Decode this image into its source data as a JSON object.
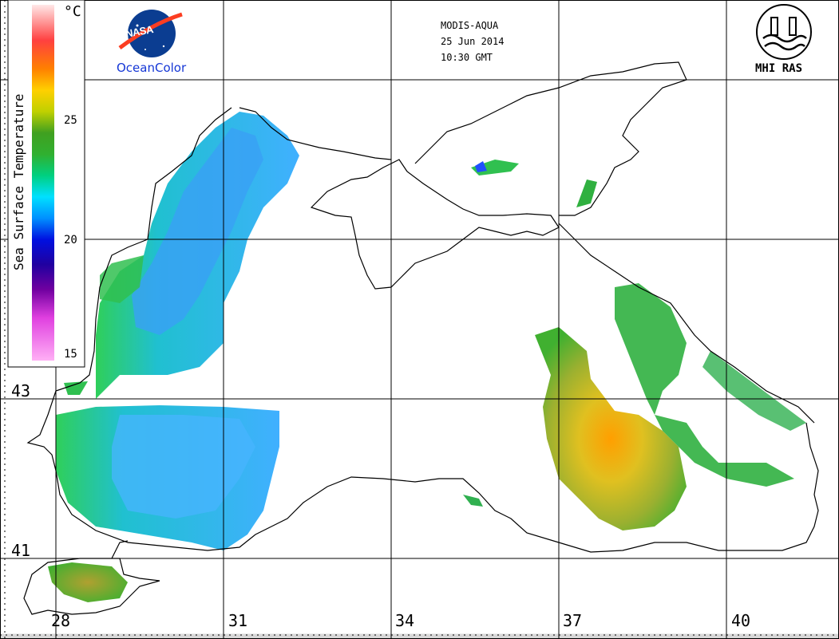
{
  "header": {
    "satellite": "MODIS-AQUA",
    "date": "25 Jun 2014",
    "time": "10:30 GMT"
  },
  "logos": {
    "nasa": "NASA",
    "oceancolor": "OceanColor",
    "mhi": "MHI RAS"
  },
  "legend": {
    "title": "Sea Surface Temperature",
    "unit": "°C",
    "ticks": [
      "25",
      "20",
      "15"
    ],
    "range": [
      15,
      30
    ],
    "colors": [
      "#ff80f0",
      "#a000c0",
      "#3000a0",
      "#0010f0",
      "#00a0ff",
      "#00e0e0",
      "#20c040",
      "#40a020",
      "#c0d000",
      "#ffd000",
      "#ff8000",
      "#ff3030",
      "#ff9090",
      "#ffe0e0"
    ]
  },
  "grid": {
    "lat_labels": [
      "43",
      "41"
    ],
    "lon_labels": [
      "28",
      "31",
      "34",
      "37",
      "40"
    ]
  },
  "colors": {
    "coast": "#000000",
    "grid": "#000000",
    "land": "#ffffff",
    "nasa_blue": "#0b3d91",
    "nasa_red": "#fc3d21",
    "oceancolor_blue": "#1537d6"
  }
}
